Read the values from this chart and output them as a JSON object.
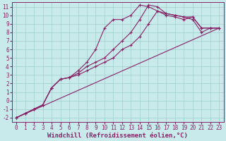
{
  "background_color": "#c8eaea",
  "grid_color": "#9ecece",
  "line_color": "#882266",
  "marker_color": "#882266",
  "xlabel": "Windchill (Refroidissement éolien,°C)",
  "xlim": [
    -0.5,
    23.5
  ],
  "ylim": [
    -2.5,
    11.5
  ],
  "xticks": [
    0,
    1,
    2,
    3,
    4,
    5,
    6,
    7,
    8,
    9,
    10,
    11,
    12,
    13,
    14,
    15,
    16,
    17,
    18,
    19,
    20,
    21,
    22,
    23
  ],
  "yticks": [
    -2,
    -1,
    0,
    1,
    2,
    3,
    4,
    5,
    6,
    7,
    8,
    9,
    10,
    11
  ],
  "series": [
    {
      "x": [
        0,
        1,
        2,
        3,
        4,
        5,
        6,
        7,
        8,
        9,
        10,
        11,
        12,
        13,
        14,
        15,
        16,
        17,
        18,
        19,
        20,
        21,
        22,
        23
      ],
      "y": [
        -2,
        -1.5,
        -1,
        -0.5,
        1.5,
        2.5,
        2.7,
        3.5,
        4.5,
        6.0,
        8.5,
        9.5,
        9.5,
        10.0,
        11.2,
        11.0,
        10.5,
        10.2,
        10.0,
        9.8,
        9.8,
        8.5,
        8.5,
        8.5
      ],
      "has_markers": true
    },
    {
      "x": [
        0,
        1,
        2,
        3,
        4,
        5,
        6,
        7,
        8,
        9,
        10,
        11,
        12,
        13,
        14,
        15,
        16,
        17,
        18,
        19,
        20,
        21,
        22,
        23
      ],
      "y": [
        -2,
        -1.5,
        -1,
        -0.5,
        1.5,
        2.5,
        2.7,
        3.2,
        4.0,
        4.5,
        5.0,
        6.0,
        7.0,
        8.0,
        9.5,
        11.2,
        11.0,
        10.2,
        10.0,
        9.8,
        9.5,
        8.0,
        8.5,
        8.5
      ],
      "has_markers": true
    },
    {
      "x": [
        0,
        1,
        2,
        3,
        4,
        5,
        6,
        7,
        8,
        9,
        10,
        11,
        12,
        13,
        14,
        15,
        16,
        17,
        18,
        19,
        20,
        21,
        22,
        23
      ],
      "y": [
        -2,
        -1.5,
        -1,
        -0.5,
        1.5,
        2.5,
        2.7,
        3.0,
        3.5,
        4.0,
        4.5,
        5.0,
        6.0,
        6.5,
        7.5,
        9.0,
        10.5,
        10.0,
        9.8,
        9.5,
        9.8,
        8.5,
        8.5,
        8.5
      ],
      "has_markers": true
    },
    {
      "x": [
        0,
        23
      ],
      "y": [
        -2,
        8.5
      ],
      "has_markers": false
    }
  ],
  "font_color": "#882266",
  "tick_fontsize": 5.5,
  "label_fontsize": 6.5
}
